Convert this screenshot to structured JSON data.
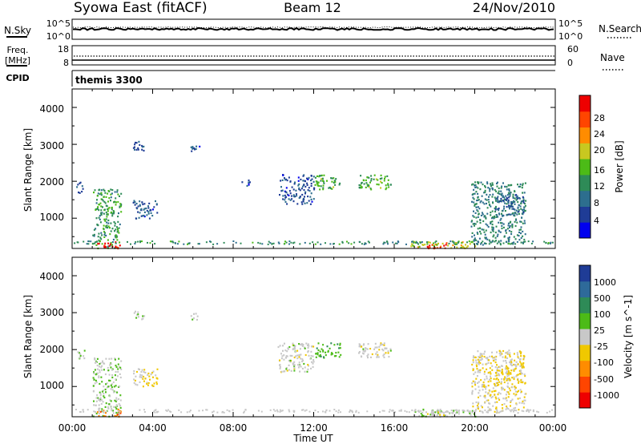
{
  "header": {
    "station": "Syowa East (fitACF)",
    "beam": "Beam 12",
    "date": "24/Nov/2010"
  },
  "sky_panel": {
    "left_label": "N.Sky",
    "right_label": "N.Search",
    "left_ticks": [
      "10^5",
      "10^0"
    ],
    "right_ticks": [
      "10^5",
      "10^0"
    ]
  },
  "freq_panel": {
    "left_label_line1": "Freq.",
    "left_label_line2": "[MHz]",
    "right_label": "Nave",
    "left_ticks": [
      "18",
      "8"
    ],
    "right_ticks": [
      "60",
      "0"
    ]
  },
  "cpid": {
    "label": "CPID",
    "value": "themis 3300"
  },
  "colors": {
    "power_scale": [
      "#0000ee",
      "#1f3c96",
      "#2d6e8e",
      "#2e8b57",
      "#4cbb17",
      "#c8c820",
      "#ff8c00",
      "#ff4500",
      "#ee0000"
    ],
    "velocity_scale": [
      "#ee0000",
      "#ff4500",
      "#ff8c00",
      "#f0c800",
      "#c8c8c8",
      "#4cbb17",
      "#2e8b57",
      "#2e6a9a",
      "#1f3c96"
    ]
  },
  "chart_data": [
    {
      "type": "heatmap",
      "panel": "power",
      "xlabel": "",
      "ylabel": "Slant Range [km]",
      "yticks": [
        "1000",
        "2000",
        "3000",
        "4000"
      ],
      "xlim": [
        0,
        24
      ],
      "ylim": [
        180,
        4500
      ],
      "colorbar": {
        "label": "Power [dB]",
        "ticks": [
          "4",
          "8",
          "12",
          "16",
          "20",
          "24",
          "28"
        ],
        "range": [
          0,
          30
        ]
      },
      "echo_regions": [
        {
          "t": [
            0.2,
            0.6
          ],
          "r": [
            1700,
            2000
          ],
          "value": 6
        },
        {
          "t": [
            1.0,
            2.4
          ],
          "r": [
            200,
            1800
          ],
          "value": 12
        },
        {
          "t": [
            1.2,
            2.4
          ],
          "r": [
            200,
            400
          ],
          "value": 28
        },
        {
          "t": [
            3.0,
            4.2
          ],
          "r": [
            1000,
            1500
          ],
          "value": 6
        },
        {
          "t": [
            3.0,
            3.6
          ],
          "r": [
            2800,
            3100
          ],
          "value": 6
        },
        {
          "t": [
            5.8,
            6.3
          ],
          "r": [
            2800,
            3000
          ],
          "value": 6
        },
        {
          "t": [
            8.4,
            8.8
          ],
          "r": [
            1900,
            2100
          ],
          "value": 5
        },
        {
          "t": [
            10.2,
            12.0
          ],
          "r": [
            1400,
            2200
          ],
          "value": 6
        },
        {
          "t": [
            12.0,
            13.3
          ],
          "r": [
            1800,
            2200
          ],
          "value": 14
        },
        {
          "t": [
            14.2,
            15.8
          ],
          "r": [
            1800,
            2200
          ],
          "value": 14
        },
        {
          "t": [
            16.8,
            20.0
          ],
          "r": [
            200,
            400
          ],
          "value": 18
        },
        {
          "t": [
            17.6,
            18.6
          ],
          "r": [
            200,
            350
          ],
          "value": 27
        },
        {
          "t": [
            19.8,
            22.5
          ],
          "r": [
            300,
            2000
          ],
          "value": 10
        },
        {
          "t": [
            21.0,
            22.4
          ],
          "r": [
            1100,
            1700
          ],
          "value": 7
        }
      ]
    },
    {
      "type": "heatmap",
      "panel": "velocity",
      "xlabel": "Time UT",
      "ylabel": "Slant Range [km]",
      "xticks": [
        "00:00",
        "04:00",
        "08:00",
        "12:00",
        "16:00",
        "20:00",
        "00:00"
      ],
      "yticks": [
        "1000",
        "2000",
        "3000",
        "4000"
      ],
      "xlim": [
        0,
        24
      ],
      "ylim": [
        180,
        4500
      ],
      "colorbar": {
        "label": "Velocity [m s^-1]",
        "ticks": [
          "1000",
          "500",
          "100",
          "25",
          "-25",
          "-100",
          "-500",
          "-1000"
        ],
        "range": [
          -1000,
          1000
        ]
      },
      "echo_regions": [
        {
          "t": [
            0.2,
            0.6
          ],
          "r": [
            1700,
            2000
          ],
          "value": 0
        },
        {
          "t": [
            1.0,
            2.4
          ],
          "r": [
            200,
            1800
          ],
          "value": 100
        },
        {
          "t": [
            1.2,
            2.4
          ],
          "r": [
            200,
            400
          ],
          "value": -500
        },
        {
          "t": [
            3.0,
            4.2
          ],
          "r": [
            1000,
            1500
          ],
          "value": -100
        },
        {
          "t": [
            3.0,
            3.6
          ],
          "r": [
            2800,
            3100
          ],
          "value": 60
        },
        {
          "t": [
            5.8,
            6.3
          ],
          "r": [
            2800,
            3000
          ],
          "value": 40
        },
        {
          "t": [
            10.2,
            12.0
          ],
          "r": [
            1400,
            2200
          ],
          "value": 0
        },
        {
          "t": [
            12.0,
            13.3
          ],
          "r": [
            1800,
            2200
          ],
          "value": 300
        },
        {
          "t": [
            14.2,
            15.8
          ],
          "r": [
            1800,
            2200
          ],
          "value": -25
        },
        {
          "t": [
            16.8,
            20.0
          ],
          "r": [
            200,
            400
          ],
          "value": 80
        },
        {
          "t": [
            17.6,
            18.6
          ],
          "r": [
            200,
            350
          ],
          "value": -100
        },
        {
          "t": [
            19.8,
            22.5
          ],
          "r": [
            300,
            2000
          ],
          "value": -80
        },
        {
          "t": [
            21.0,
            22.4
          ],
          "r": [
            1100,
            1700
          ],
          "value": -150
        }
      ]
    }
  ]
}
